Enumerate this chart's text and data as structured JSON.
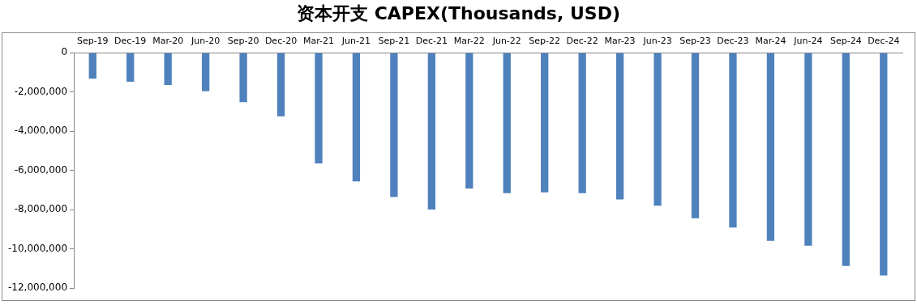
{
  "chart_data": {
    "type": "bar",
    "title": "资本开支 CAPEX(Thousands, USD)",
    "categories": [
      "Sep-19",
      "Dec-19",
      "Mar-20",
      "Jun-20",
      "Sep-20",
      "Dec-20",
      "Mar-21",
      "Jun-21",
      "Sep-21",
      "Dec-21",
      "Mar-22",
      "Jun-22",
      "Sep-22",
      "Dec-22",
      "Mar-23",
      "Jun-23",
      "Sep-23",
      "Dec-23",
      "Mar-24",
      "Jun-24",
      "Sep-24",
      "Dec-24"
    ],
    "values": [
      -1320000,
      -1480000,
      -1640000,
      -1960000,
      -2520000,
      -3240000,
      -5640000,
      -6560000,
      -7360000,
      -8000000,
      -6920000,
      -7160000,
      -7120000,
      -7160000,
      -7480000,
      -7800000,
      -8440000,
      -8920000,
      -9600000,
      -9840000,
      -10880000,
      -11360000
    ],
    "color": "#4f81bd",
    "ylim": [
      -12000000,
      0
    ],
    "yticks": [
      {
        "value": -12000000,
        "label": "-12,000,000"
      },
      {
        "value": -10000000,
        "label": "-10,000,000"
      },
      {
        "value": -8000000,
        "label": "-8,000,000"
      },
      {
        "value": -6000000,
        "label": "-6,000,000"
      },
      {
        "value": -4000000,
        "label": "-4,000,000"
      },
      {
        "value": -2000000,
        "label": "-2,000,000"
      },
      0
    ],
    "grid": false,
    "legend": false
  }
}
